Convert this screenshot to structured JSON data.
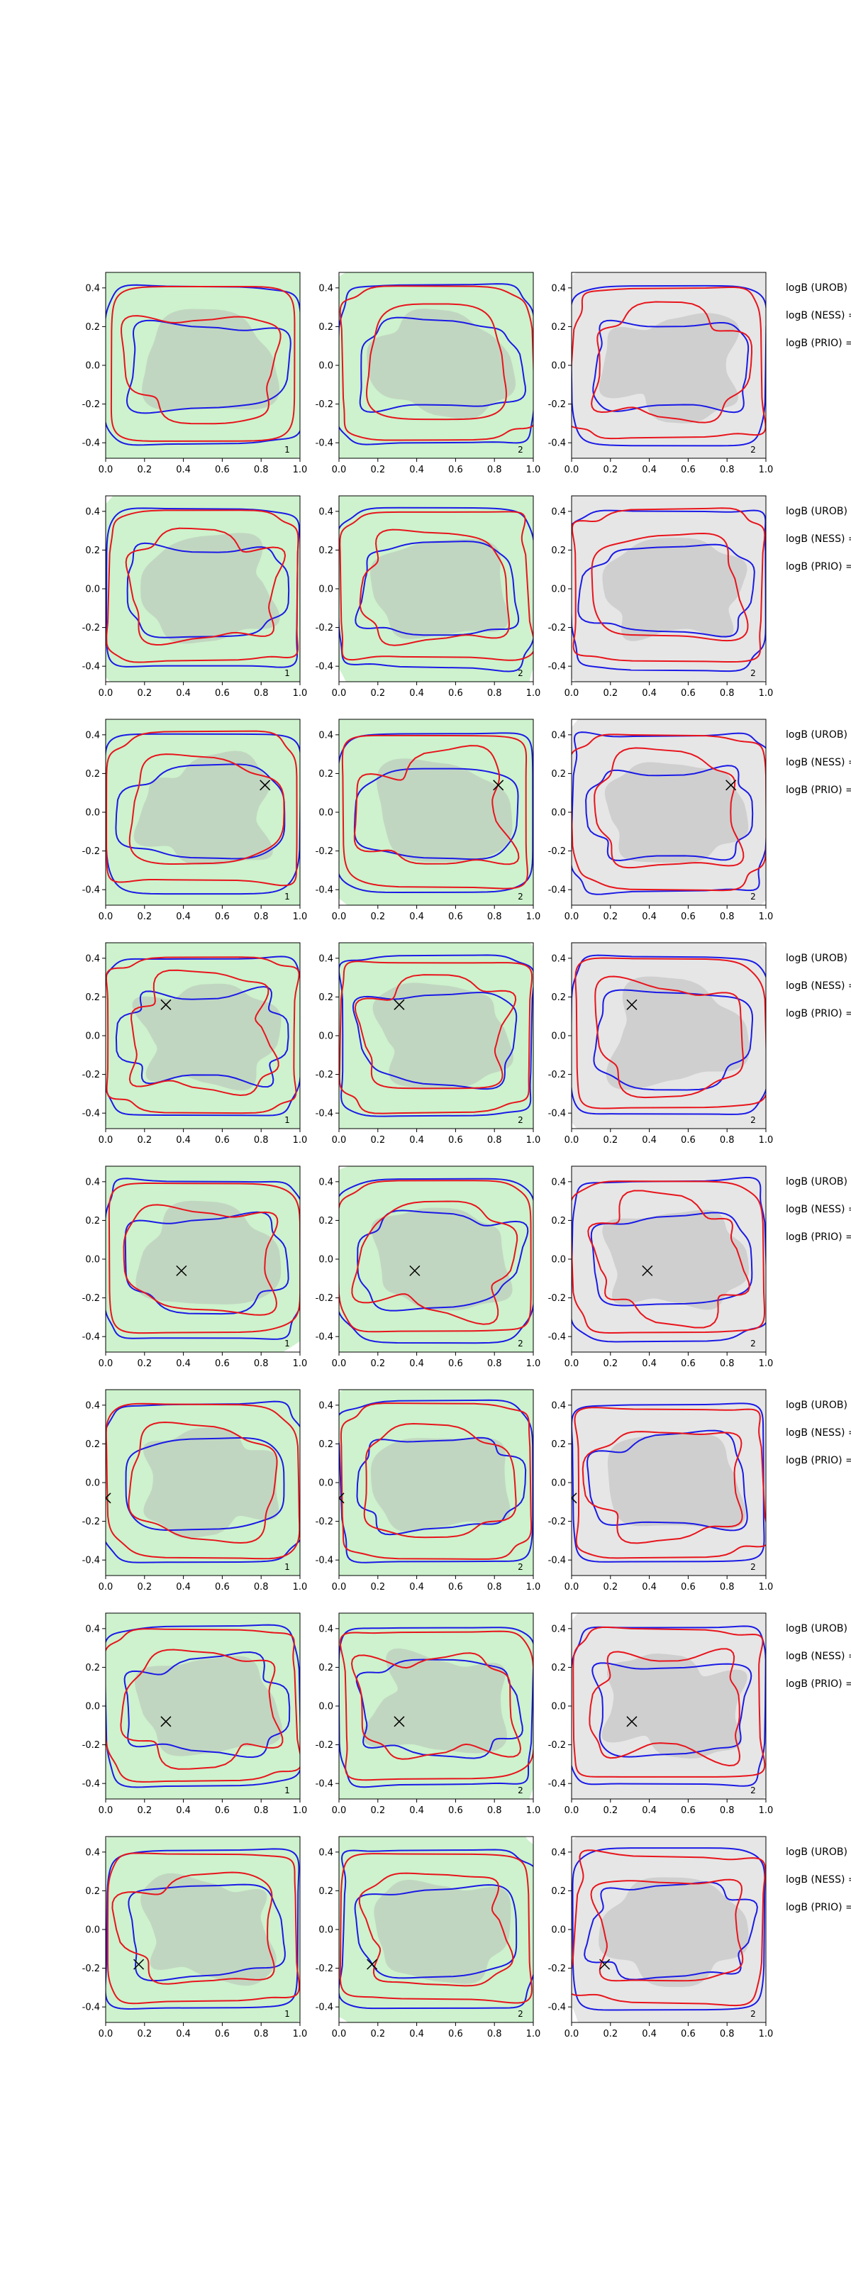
{
  "chart_data": {
    "type": "contour-grid",
    "title": "",
    "grid": {
      "rows": 8,
      "cols": 3
    },
    "xlim": [
      0.0,
      1.0
    ],
    "ylim": [
      -0.48,
      0.48
    ],
    "xticks": [
      "0.0",
      "0.2",
      "0.4",
      "0.6",
      "0.8",
      "1.0"
    ],
    "yticks": [
      "0.4",
      "0.2",
      "0.0",
      "-0.2",
      "-0.4"
    ],
    "column_corner_labels": [
      "1",
      "2",
      "2"
    ],
    "row_annotations": [
      "logB (UROB) =",
      "logB (NESS) =",
      "logB (PRIO) ="
    ],
    "series_colors": {
      "contour_a": "#e8141c",
      "contour_b": "#1a1ae6",
      "fill_column_1_2": "#9be69b",
      "fill_column_3": "#c8c8c8",
      "inner_fill": "#b4b4b4",
      "marker": "#000000"
    },
    "markers": [
      null,
      null,
      {
        "x": 0.82,
        "y": 0.14
      },
      {
        "x": 0.31,
        "y": 0.16
      },
      {
        "x": 0.39,
        "y": -0.06
      },
      {
        "x": 0.0,
        "y": -0.08
      },
      {
        "x": 0.31,
        "y": -0.08
      },
      {
        "x": 0.17,
        "y": -0.18
      }
    ]
  }
}
